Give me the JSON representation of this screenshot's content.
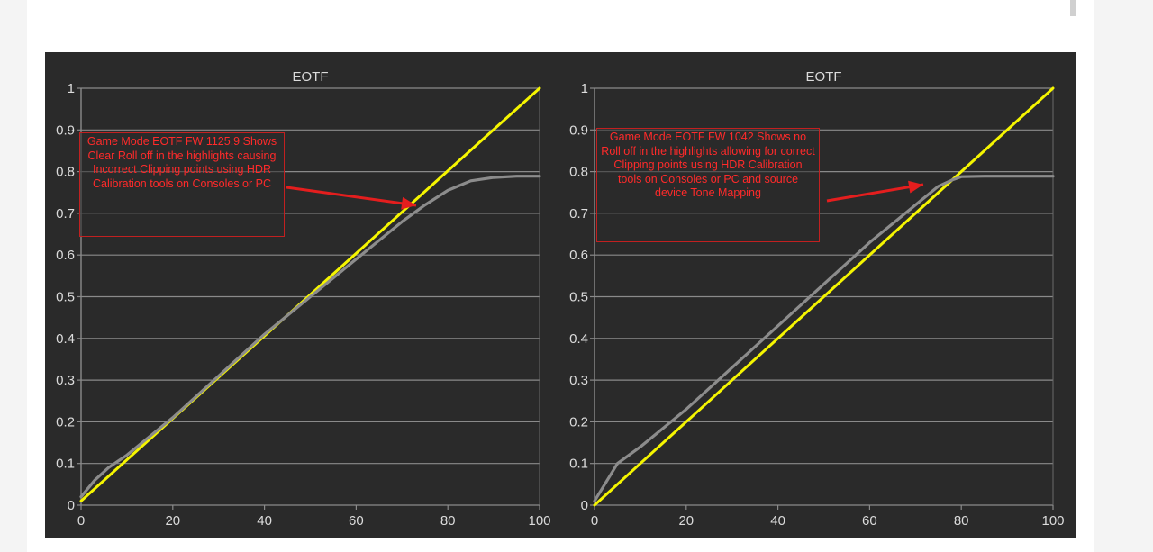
{
  "chart_data": [
    {
      "type": "line",
      "title": "EOTF",
      "xlabel": "",
      "ylabel": "",
      "xlim": [
        0,
        100
      ],
      "ylim": [
        0,
        1
      ],
      "xticks": [
        "0",
        "20",
        "40",
        "60",
        "80",
        "100"
      ],
      "yticks": [
        "0",
        "0.1",
        "0.2",
        "0.3",
        "0.4",
        "0.5",
        "0.6",
        "0.7",
        "0.8",
        "0.9",
        "1"
      ],
      "grid": true,
      "series": [
        {
          "color": "#f5f500",
          "x": [
            0,
            100
          ],
          "y": [
            0.01,
            1.0
          ]
        },
        {
          "color": "#8c8c8c",
          "x": [
            0,
            3,
            6,
            10,
            20,
            30,
            40,
            50,
            60,
            70,
            75,
            80,
            85,
            90,
            95,
            100
          ],
          "y": [
            0.02,
            0.06,
            0.09,
            0.12,
            0.21,
            0.31,
            0.41,
            0.5,
            0.59,
            0.68,
            0.72,
            0.755,
            0.778,
            0.786,
            0.789,
            0.789
          ]
        }
      ],
      "annotation": "Game Mode EOTF FW 1125.9 Shows Clear Roll off in the highlights causing Incorrect Clipping points using HDR Calibration tools on Consoles or PC",
      "annotation_color": "#ff2a2a"
    },
    {
      "type": "line",
      "title": "EOTF",
      "xlabel": "",
      "ylabel": "",
      "xlim": [
        0,
        100
      ],
      "ylim": [
        0,
        1
      ],
      "xticks": [
        "0",
        "20",
        "40",
        "60",
        "80",
        "100"
      ],
      "yticks": [
        "0",
        "0.1",
        "0.2",
        "0.3",
        "0.4",
        "0.5",
        "0.6",
        "0.7",
        "0.8",
        "0.9",
        "1"
      ],
      "grid": true,
      "series": [
        {
          "color": "#f5f500",
          "x": [
            0,
            100
          ],
          "y": [
            0.0,
            1.0
          ]
        },
        {
          "color": "#8c8c8c",
          "x": [
            0,
            5,
            10,
            20,
            30,
            40,
            50,
            60,
            70,
            75,
            78,
            80,
            85,
            90,
            100
          ],
          "y": [
            0.01,
            0.1,
            0.14,
            0.23,
            0.33,
            0.43,
            0.53,
            0.63,
            0.72,
            0.765,
            0.78,
            0.788,
            0.789,
            0.789,
            0.789
          ]
        }
      ],
      "annotation": "Game Mode EOTF FW 1042 Shows no Roll off in the highlights allowing for correct Clipping points using HDR Calibration tools on Consoles or PC and source device Tone Mapping",
      "annotation_color": "#ff2a2a"
    }
  ]
}
